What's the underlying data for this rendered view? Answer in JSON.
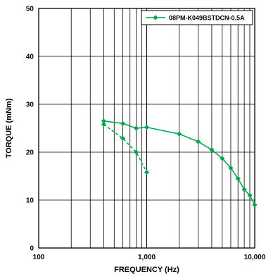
{
  "chart_data": {
    "type": "line",
    "title": "",
    "xlabel": "FREQUENCY (Hz)",
    "ylabel": "TORQUE (mNm)",
    "x_scale": "log",
    "xlim": [
      100,
      10000
    ],
    "ylim": [
      0,
      50
    ],
    "x_ticks": [
      100,
      1000,
      10000
    ],
    "x_tick_labels": [
      "100",
      "1,000",
      "10,000"
    ],
    "y_ticks": [
      0,
      10,
      20,
      30,
      40,
      50
    ],
    "y_tick_labels": [
      "0",
      "10",
      "20",
      "30",
      "40",
      "50"
    ],
    "grid": true,
    "legend_position": "top-right",
    "series": [
      {
        "name": "08PM-K049BSTDCN-0.5A",
        "color": "#00a651",
        "line": "solid",
        "marker": "diamond",
        "x": [
          400,
          600,
          800,
          1000,
          2000,
          3000,
          4000,
          5000,
          6000,
          7000,
          8000,
          9000,
          10000
        ],
        "y": [
          26.5,
          26.0,
          25.0,
          25.2,
          23.8,
          22.2,
          20.5,
          18.7,
          16.7,
          14.5,
          12.2,
          11.0,
          9.0
        ]
      },
      {
        "name": "",
        "color": "#00a651",
        "line": "dashed",
        "marker": "diamond",
        "x": [
          400,
          600,
          800,
          1000
        ],
        "y": [
          25.8,
          22.9,
          20.0,
          15.8
        ]
      }
    ]
  }
}
